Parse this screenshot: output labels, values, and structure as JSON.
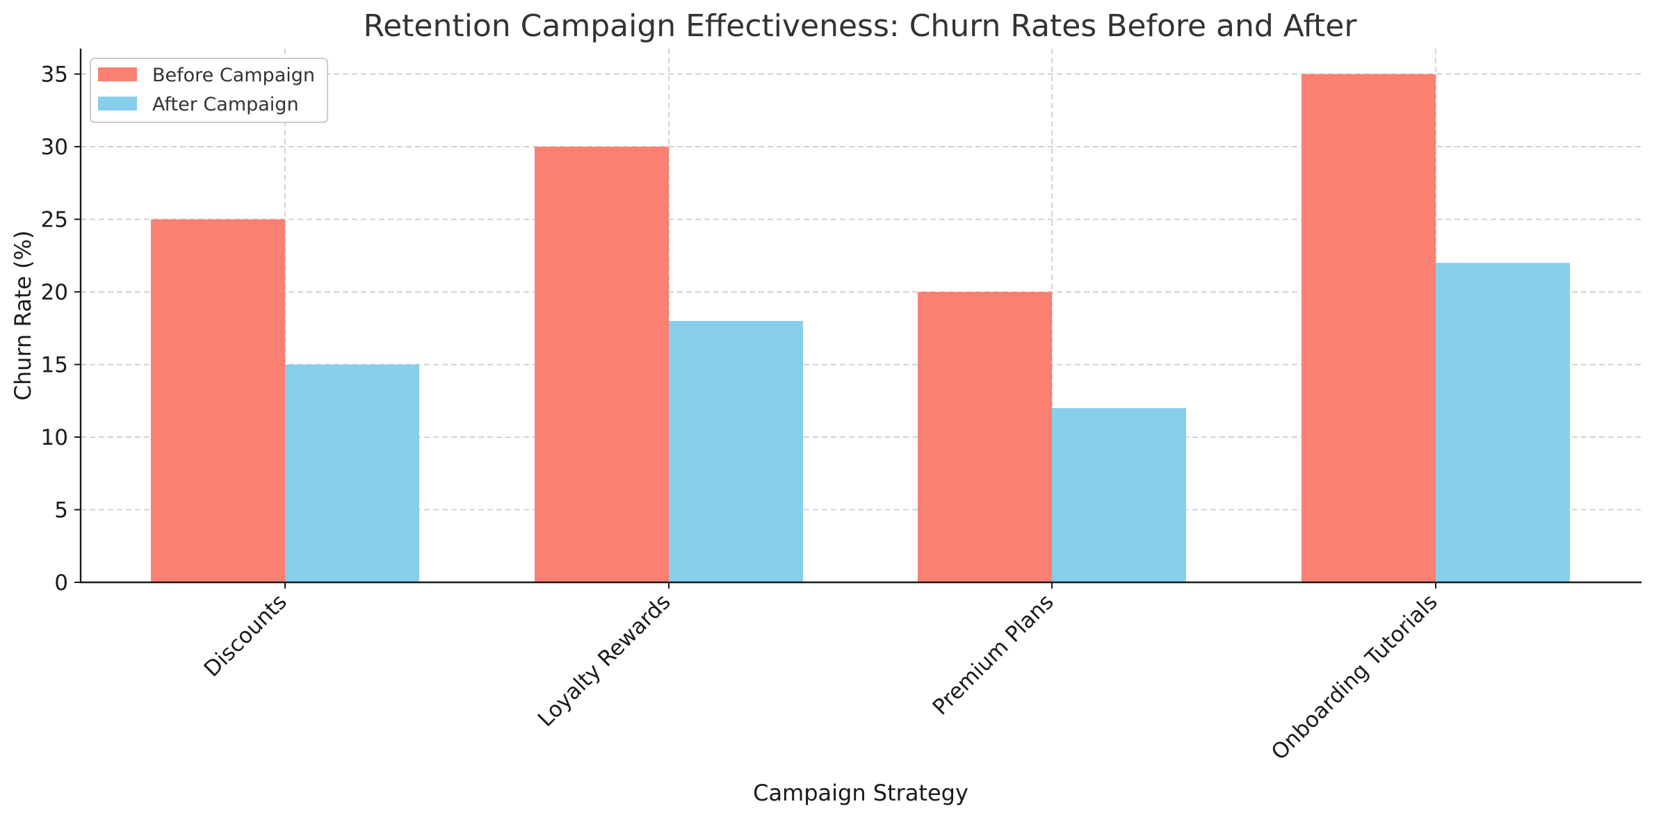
{
  "chart_data": {
    "type": "bar",
    "title": "Retention Campaign Effectiveness: Churn Rates Before and After",
    "xlabel": "Campaign Strategy",
    "ylabel": "Churn Rate (%)",
    "categories": [
      "Discounts",
      "Loyalty Rewards",
      "Premium Plans",
      "Onboarding Tutorials"
    ],
    "series": [
      {
        "name": "Before Campaign",
        "values": [
          25,
          30,
          20,
          35
        ],
        "color": "#fa8072"
      },
      {
        "name": "After Campaign",
        "values": [
          15,
          18,
          12,
          22
        ],
        "color": "#87ceeb"
      }
    ],
    "ylim": [
      0,
      36.75
    ],
    "yticks": [
      0,
      5,
      10,
      15,
      20,
      25,
      30,
      35
    ],
    "grid": true,
    "legend_position": "top-left"
  }
}
